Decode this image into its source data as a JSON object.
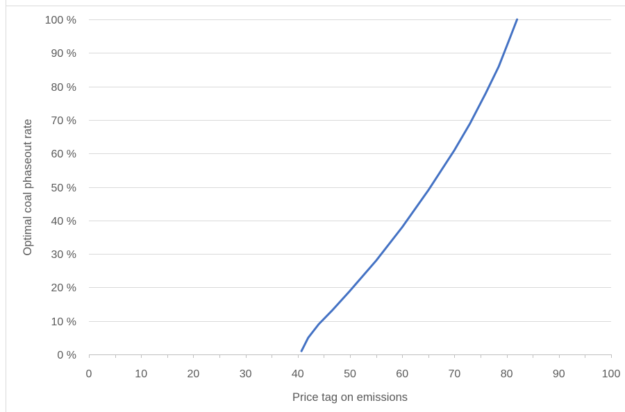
{
  "chart_data": {
    "type": "line",
    "title": "",
    "xlabel": "Price tag on emissions",
    "ylabel": "Optimal coal phaseout rate",
    "xlim": [
      0,
      100
    ],
    "ylim": [
      0,
      100
    ],
    "x_ticks": [
      "0",
      "10",
      "20",
      "30",
      "40",
      "50",
      "60",
      "70",
      "80",
      "90",
      "100"
    ],
    "y_ticks": [
      "0 %",
      "10 %",
      "20 %",
      "30 %",
      "40 %",
      "50 %",
      "60 %",
      "70 %",
      "80 %",
      "90 %",
      "100 %"
    ],
    "grid": true,
    "legend": "none",
    "series": [
      {
        "color": "#4472c4",
        "x": [
          40.7,
          42.0,
          44.0,
          46.5,
          50.0,
          55.0,
          60.0,
          65.0,
          70.0,
          73.0,
          76.0,
          78.5,
          80.5,
          82.0
        ],
        "values": [
          1,
          5,
          9,
          13,
          19,
          28,
          38,
          49,
          61,
          69,
          78,
          86,
          94,
          100
        ]
      }
    ]
  }
}
